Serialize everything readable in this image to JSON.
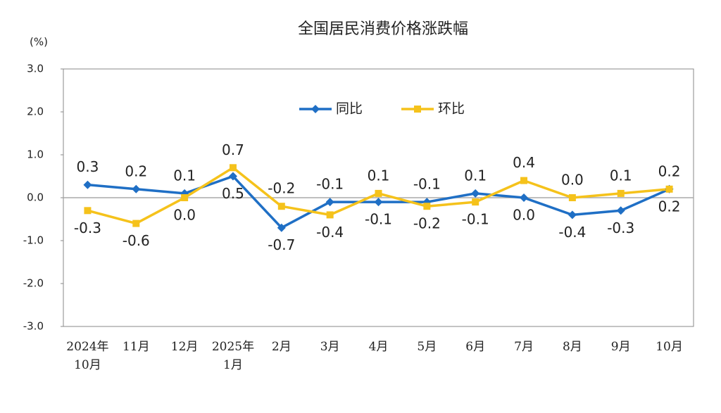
{
  "chart_data": {
    "type": "line",
    "title": "全国居民消费价格涨跌幅",
    "y_label": "(%)",
    "categories": [
      "2024年\n10月",
      "11月",
      "12月",
      "2025年\n1月",
      "2月",
      "3月",
      "4月",
      "5月",
      "6月",
      "7月",
      "8月",
      "9月",
      "10月"
    ],
    "series": [
      {
        "name": "同比",
        "color": "#1f6fc5",
        "marker": "diamond",
        "values": [
          0.3,
          0.2,
          0.1,
          0.5,
          -0.7,
          -0.1,
          -0.1,
          -0.1,
          0.1,
          0.0,
          -0.4,
          -0.3,
          0.2
        ],
        "value_labels": [
          "0.3",
          "0.2",
          "0.1",
          "0.5",
          "-0.7",
          "-0.1",
          "-0.1",
          "-0.1",
          "0.1",
          "0.0",
          "-0.4",
          "-0.3",
          "0.2"
        ]
      },
      {
        "name": "环比",
        "color": "#f5c21b",
        "marker": "square",
        "values": [
          -0.3,
          -0.6,
          0.0,
          0.7,
          -0.2,
          -0.4,
          0.1,
          -0.2,
          -0.1,
          0.4,
          0.0,
          0.1,
          0.2
        ],
        "value_labels": [
          "-0.3",
          "-0.6",
          "0.0",
          "0.7",
          "-0.2",
          "-0.4",
          "0.1",
          "-0.2",
          "-0.1",
          "0.4",
          "0.0",
          "0.1",
          "0.2"
        ]
      }
    ],
    "ylim": [
      -3,
      3
    ],
    "yticks": [
      {
        "value": -3,
        "label": "-3.0"
      },
      {
        "value": -2,
        "label": "-2.0"
      },
      {
        "value": -1,
        "label": "-1.0"
      },
      {
        "value": 0,
        "label": "0.0"
      },
      {
        "value": 1,
        "label": "1.0"
      },
      {
        "value": 2,
        "label": "2.0"
      },
      {
        "value": 3,
        "label": "3.0"
      }
    ],
    "grid": false,
    "legend": "top"
  }
}
